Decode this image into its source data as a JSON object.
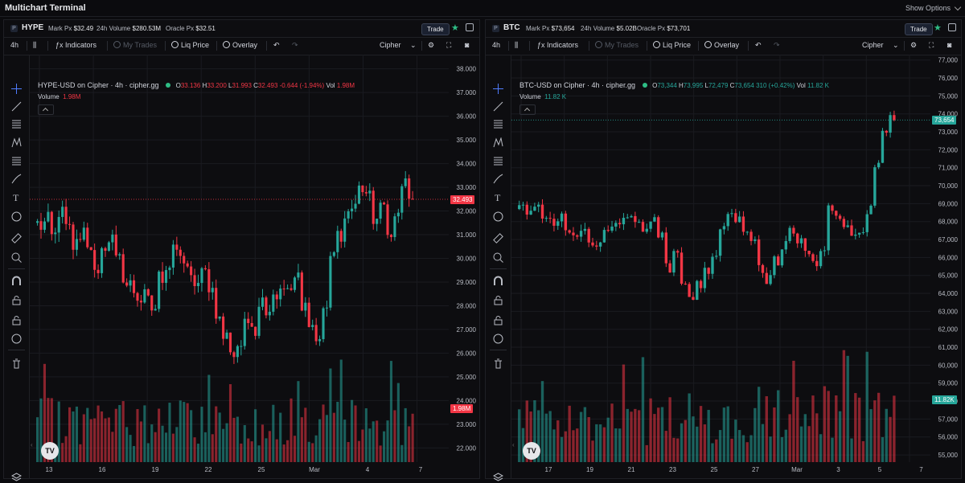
{
  "app": {
    "title": "Multichart Terminal",
    "show_options": "Show Options"
  },
  "panels": [
    {
      "badge": "P",
      "symbol": "HYPE",
      "mark_px_label": "Mark Px",
      "mark_px": "$32.49",
      "vol_label": "24h Volume",
      "vol": "$280.53M",
      "oracle_label": "Oracle Px",
      "oracle": "$32.51",
      "trade": "Trade",
      "toolbar": {
        "interval": "4h",
        "indicators": "Indicators",
        "my_trades": "My Trades",
        "liq_price": "Liq Price",
        "overlay": "Overlay",
        "source": "Cipher"
      },
      "legend": {
        "title": "HYPE-USD on Cipher · 4h · cipher.gg",
        "o": "33.136",
        "h": "33.200",
        "l": "31.993",
        "c": "32.493",
        "chg": "-0.644 (-1.94%)",
        "vol_label": "Vol",
        "vol": "1.98M",
        "volume_label": "Volume",
        "volume": "1.98M"
      },
      "price_ticks": [
        "38.000",
        "37.000",
        "36.000",
        "35.000",
        "34.000",
        "33.000",
        "32.000",
        "31.000",
        "30.000",
        "29.000",
        "28.000",
        "27.000",
        "26.000",
        "25.000",
        "24.000",
        "23.000",
        "22.000"
      ],
      "time_ticks": [
        "13",
        "16",
        "19",
        "22",
        "25",
        "Mar",
        "4",
        "7"
      ],
      "last_price": "32.493",
      "last_volume": "1.98M",
      "colors": {
        "price_tag": "#f23645",
        "volume_tag": "#f23645",
        "legend_value": "#f23645"
      }
    },
    {
      "badge": "P",
      "symbol": "BTC",
      "mark_px_label": "Mark Px",
      "mark_px": "$73,654",
      "vol_label": "24h Volume",
      "vol": "$5.02B",
      "oracle_label": "Oracle Px",
      "oracle": "$73,701",
      "trade": "Trade",
      "toolbar": {
        "interval": "4h",
        "indicators": "Indicators",
        "my_trades": "My Trades",
        "liq_price": "Liq Price",
        "overlay": "Overlay",
        "source": "Cipher"
      },
      "legend": {
        "title": "BTC-USD on Cipher · 4h · cipher.gg",
        "o": "73,344",
        "h": "73,995",
        "l": "72,479",
        "c": "73,654",
        "chg": "310 (+0.42%)",
        "vol_label": "Vol",
        "vol": "11.82 K",
        "volume_label": "Volume",
        "volume": "11.82 K"
      },
      "price_ticks": [
        "77,000",
        "76,000",
        "75,000",
        "74,000",
        "73,000",
        "72,000",
        "71,000",
        "70,000",
        "69,000",
        "68,000",
        "67,000",
        "66,000",
        "65,000",
        "64,000",
        "63,000",
        "62,000",
        "61,000",
        "60,000",
        "59,000",
        "58,000",
        "57,000",
        "56,000",
        "55,000"
      ],
      "time_ticks": [
        "17",
        "19",
        "21",
        "23",
        "25",
        "27",
        "Mar",
        "3",
        "5",
        "7"
      ],
      "last_price": "73,654",
      "last_volume": "11.82K",
      "colors": {
        "price_tag": "#26a69a",
        "volume_tag": "#26a69a",
        "legend_value": "#26a69a"
      }
    }
  ],
  "colors": {
    "up": "#26a69a",
    "down": "#f23645",
    "bg": "#0d0d10",
    "grid": "#1a1b20"
  }
}
